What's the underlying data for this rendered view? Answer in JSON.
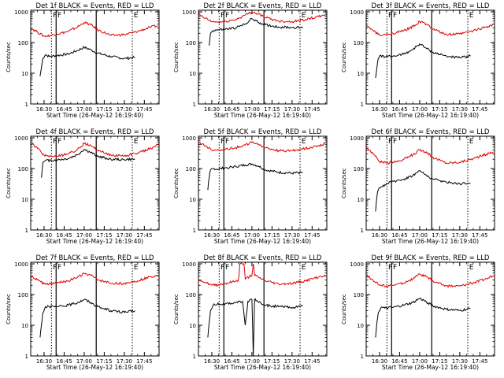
{
  "chart_data": [
    {
      "type": "line",
      "title": "Det 1f BLACK = Events, RED = LLD",
      "xlabel": "Start Time (26-May-12 16:19:40)",
      "ylabel": "Counts/sec",
      "yscale": "log",
      "ylim": [
        1,
        1000
      ],
      "xlim": [
        "16:20",
        "17:56"
      ],
      "x_ticks": [
        "16:30",
        "16:45",
        "17:00",
        "17:15",
        "17:30",
        "17:45"
      ],
      "y_ticks": [
        "1",
        "10",
        "100",
        "1000"
      ],
      "markers": [
        "F",
        "F",
        "E"
      ],
      "series": [
        {
          "name": "BLACK",
          "color": "#000000",
          "x": [
            "16:27",
            "16:28",
            "16:29",
            "16:31",
            "16:34",
            "16:40",
            "16:48",
            "16:55",
            "17:00",
            "17:05",
            "17:10",
            "17:20",
            "17:30",
            "17:38"
          ],
          "values": [
            8,
            15,
            30,
            40,
            35,
            38,
            42,
            55,
            70,
            58,
            45,
            35,
            30,
            33
          ]
        },
        {
          "name": "RED",
          "color": "#e00000",
          "x": [
            "16:20",
            "16:25",
            "16:30",
            "16:35",
            "16:40",
            "16:48",
            "16:55",
            "17:00",
            "17:05",
            "17:10",
            "17:20",
            "17:30",
            "17:40",
            "17:50",
            "17:55"
          ],
          "values": [
            300,
            220,
            160,
            170,
            190,
            230,
            320,
            450,
            380,
            260,
            170,
            180,
            230,
            320,
            350
          ]
        }
      ]
    },
    {
      "type": "line",
      "title": "Det 2f BLACK = Events, RED = LLD",
      "xlabel": "Start Time (26-May-12 16:19:40)",
      "ylabel": "Counts/sec",
      "yscale": "log",
      "ylim": [
        1,
        1000
      ],
      "xlim": [
        "16:20",
        "17:56"
      ],
      "x_ticks": [
        "16:30",
        "16:45",
        "17:00",
        "17:15",
        "17:30",
        "17:45"
      ],
      "y_ticks": [
        "1",
        "10",
        "100",
        "1000"
      ],
      "markers": [
        "F",
        "F",
        "E"
      ],
      "series": [
        {
          "name": "BLACK",
          "color": "#000000",
          "x": [
            "16:28",
            "16:29",
            "16:31",
            "16:35",
            "16:40",
            "16:48",
            "16:55",
            "17:00",
            "17:05",
            "17:10",
            "17:20",
            "17:30",
            "17:38"
          ],
          "values": [
            80,
            200,
            250,
            260,
            270,
            300,
            400,
            600,
            450,
            380,
            320,
            310,
            300
          ]
        },
        {
          "name": "RED",
          "color": "#e00000",
          "x": [
            "16:20",
            "16:25",
            "16:30",
            "16:35",
            "16:40",
            "16:48",
            "16:55",
            "17:00",
            "17:05",
            "17:10",
            "17:20",
            "17:30",
            "17:40",
            "17:50",
            "17:55"
          ],
          "values": [
            800,
            620,
            480,
            460,
            480,
            560,
            780,
            1000,
            850,
            650,
            500,
            480,
            560,
            700,
            750
          ]
        }
      ]
    },
    {
      "type": "line",
      "title": "Det 3f BLACK = Events, RED = LLD",
      "xlabel": "Start Time (26-May-12 16:19:40)",
      "ylabel": "Counts/sec",
      "yscale": "log",
      "ylim": [
        1,
        1000
      ],
      "xlim": [
        "16:20",
        "17:56"
      ],
      "x_ticks": [
        "16:30",
        "16:45",
        "17:00",
        "17:15",
        "17:30",
        "17:45"
      ],
      "y_ticks": [
        "1",
        "10",
        "100",
        "1000"
      ],
      "markers": [
        "F",
        "F",
        "E"
      ],
      "series": [
        {
          "name": "BLACK",
          "color": "#000000",
          "x": [
            "16:27",
            "16:28",
            "16:29",
            "16:31",
            "16:34",
            "16:40",
            "16:48",
            "16:55",
            "17:00",
            "17:05",
            "17:10",
            "17:20",
            "17:30",
            "17:38"
          ],
          "values": [
            7,
            15,
            30,
            38,
            34,
            36,
            42,
            60,
            90,
            65,
            48,
            36,
            32,
            36
          ]
        },
        {
          "name": "RED",
          "color": "#e00000",
          "x": [
            "16:20",
            "16:25",
            "16:30",
            "16:35",
            "16:40",
            "16:48",
            "16:55",
            "17:00",
            "17:05",
            "17:10",
            "17:20",
            "17:30",
            "17:40",
            "17:50",
            "17:55"
          ],
          "values": [
            350,
            250,
            170,
            180,
            200,
            240,
            330,
            480,
            400,
            270,
            180,
            190,
            240,
            330,
            380
          ]
        }
      ]
    },
    {
      "type": "line",
      "title": "Det 4f BLACK = Events, RED = LLD",
      "xlabel": "Start Time (26-May-12 16:19:40)",
      "ylabel": "Counts/sec",
      "yscale": "log",
      "ylim": [
        1,
        1000
      ],
      "xlim": [
        "16:20",
        "17:56"
      ],
      "x_ticks": [
        "16:30",
        "16:45",
        "17:00",
        "17:15",
        "17:30",
        "17:45"
      ],
      "y_ticks": [
        "1",
        "10",
        "100",
        "1000"
      ],
      "markers": [
        "F",
        "F",
        "E"
      ],
      "series": [
        {
          "name": "BLACK",
          "color": "#000000",
          "x": [
            "16:28",
            "16:29",
            "16:31",
            "16:35",
            "16:40",
            "16:48",
            "16:55",
            "17:00",
            "17:05",
            "17:10",
            "17:20",
            "17:30",
            "17:38"
          ],
          "values": [
            50,
            150,
            180,
            185,
            190,
            210,
            280,
            420,
            330,
            250,
            200,
            195,
            200
          ]
        },
        {
          "name": "RED",
          "color": "#e00000",
          "x": [
            "16:20",
            "16:25",
            "16:30",
            "16:35",
            "16:40",
            "16:48",
            "16:55",
            "17:00",
            "17:05",
            "17:10",
            "17:20",
            "17:30",
            "17:40",
            "17:50",
            "17:55"
          ],
          "values": [
            700,
            450,
            270,
            250,
            250,
            300,
            420,
            650,
            560,
            400,
            270,
            260,
            320,
            450,
            600
          ]
        }
      ]
    },
    {
      "type": "line",
      "title": "Det 5f BLACK = Events, RED = LLD",
      "xlabel": "Start Time (26-May-12 16:19:40)",
      "ylabel": "Counts/sec",
      "yscale": "log",
      "ylim": [
        1,
        1000
      ],
      "xlim": [
        "16:20",
        "17:56"
      ],
      "x_ticks": [
        "16:30",
        "16:45",
        "17:00",
        "17:15",
        "17:30",
        "17:45"
      ],
      "y_ticks": [
        "1",
        "10",
        "100",
        "1000"
      ],
      "markers": [
        "F",
        "F",
        "E"
      ],
      "series": [
        {
          "name": "BLACK",
          "color": "#000000",
          "x": [
            "16:27",
            "16:28",
            "16:29",
            "16:31",
            "16:34",
            "16:40",
            "16:48",
            "16:55",
            "17:00",
            "17:05",
            "17:10",
            "17:20",
            "17:30",
            "17:38"
          ],
          "values": [
            20,
            50,
            90,
            100,
            95,
            105,
            115,
            130,
            140,
            120,
            90,
            75,
            70,
            75
          ]
        },
        {
          "name": "RED",
          "color": "#e00000",
          "x": [
            "16:20",
            "16:25",
            "16:30",
            "16:35",
            "16:40",
            "16:48",
            "16:55",
            "17:00",
            "17:05",
            "17:10",
            "17:20",
            "17:30",
            "17:40",
            "17:50",
            "17:55"
          ],
          "values": [
            700,
            550,
            400,
            400,
            420,
            480,
            580,
            700,
            620,
            470,
            380,
            380,
            450,
            560,
            650
          ]
        }
      ]
    },
    {
      "type": "line",
      "title": "Det 6f BLACK = Events, RED = LLD",
      "xlabel": "Start Time (26-May-12 16:19:40)",
      "ylabel": "Counts/sec",
      "yscale": "log",
      "ylim": [
        1,
        1000
      ],
      "xlim": [
        "16:20",
        "17:56"
      ],
      "x_ticks": [
        "16:30",
        "16:45",
        "17:00",
        "17:15",
        "17:30",
        "17:45"
      ],
      "y_ticks": [
        "1",
        "10",
        "100",
        "1000"
      ],
      "markers": [
        "F",
        "F",
        "E"
      ],
      "series": [
        {
          "name": "BLACK",
          "color": "#000000",
          "x": [
            "16:27",
            "16:28",
            "16:29",
            "16:31",
            "16:34",
            "16:40",
            "16:48",
            "16:55",
            "17:00",
            "17:05",
            "17:10",
            "17:20",
            "17:30",
            "17:38"
          ],
          "values": [
            4,
            12,
            20,
            25,
            30,
            38,
            45,
            60,
            85,
            60,
            45,
            36,
            32,
            34
          ]
        },
        {
          "name": "RED",
          "color": "#e00000",
          "x": [
            "16:20",
            "16:25",
            "16:30",
            "16:35",
            "16:40",
            "16:48",
            "16:55",
            "17:00",
            "17:05",
            "17:10",
            "17:20",
            "17:30",
            "17:40",
            "17:50",
            "17:55"
          ],
          "values": [
            480,
            320,
            170,
            150,
            160,
            200,
            280,
            400,
            350,
            230,
            150,
            160,
            210,
            290,
            350
          ]
        }
      ]
    },
    {
      "type": "line",
      "title": "Det 7f BLACK = Events, RED = LLD",
      "xlabel": "Start Time (26-May-12 16:19:40)",
      "ylabel": "Counts/sec",
      "yscale": "log",
      "ylim": [
        1,
        1000
      ],
      "xlim": [
        "16:20",
        "17:56"
      ],
      "x_ticks": [
        "16:30",
        "16:45",
        "17:00",
        "17:15",
        "17:30",
        "17:45"
      ],
      "y_ticks": [
        "1",
        "10",
        "100",
        "1000"
      ],
      "markers": [
        "F",
        "F",
        "E"
      ],
      "series": [
        {
          "name": "BLACK",
          "color": "#000000",
          "x": [
            "16:27",
            "16:28",
            "16:29",
            "16:31",
            "16:34",
            "16:40",
            "16:48",
            "16:55",
            "17:00",
            "17:05",
            "17:10",
            "17:20",
            "17:30",
            "17:38"
          ],
          "values": [
            4,
            10,
            25,
            40,
            40,
            40,
            45,
            55,
            70,
            55,
            40,
            30,
            26,
            30
          ]
        },
        {
          "name": "RED",
          "color": "#e00000",
          "x": [
            "16:20",
            "16:25",
            "16:30",
            "16:35",
            "16:40",
            "16:48",
            "16:55",
            "17:00",
            "17:05",
            "17:10",
            "17:20",
            "17:30",
            "17:40",
            "17:50",
            "17:55"
          ],
          "values": [
            400,
            300,
            220,
            220,
            240,
            280,
            360,
            480,
            420,
            300,
            230,
            230,
            280,
            380,
            430
          ]
        }
      ]
    },
    {
      "type": "line",
      "title": "Det 8f BLACK = Events, RED = LLD",
      "xlabel": "Start Time (26-May-12 16:19:40)",
      "ylabel": "Counts/sec",
      "yscale": "log",
      "ylim": [
        1,
        1000
      ],
      "xlim": [
        "16:20",
        "17:56"
      ],
      "x_ticks": [
        "16:30",
        "16:45",
        "17:00",
        "17:15",
        "17:30",
        "17:45"
      ],
      "y_ticks": [
        "1",
        "10",
        "100",
        "1000"
      ],
      "markers": [
        "F",
        "F",
        "E"
      ],
      "series": [
        {
          "name": "BLACK",
          "color": "#000000",
          "x": [
            "16:27",
            "16:28",
            "16:29",
            "16:31",
            "16:34",
            "16:40",
            "16:48",
            "16:53",
            "16:55",
            "16:57",
            "17:00",
            "17:01",
            "17:02",
            "17:03",
            "17:05",
            "17:10",
            "17:20",
            "17:30",
            "17:38"
          ],
          "values": [
            4,
            12,
            30,
            45,
            48,
            50,
            55,
            60,
            10,
            60,
            70,
            1,
            70,
            62,
            55,
            45,
            40,
            38,
            42
          ]
        },
        {
          "name": "RED",
          "color": "#e00000",
          "x": [
            "16:20",
            "16:25",
            "16:30",
            "16:35",
            "16:40",
            "16:48",
            "16:50",
            "16:51",
            "16:54",
            "16:55",
            "16:58",
            "17:00",
            "17:01",
            "17:02",
            "17:05",
            "17:10",
            "17:20",
            "17:30",
            "17:40",
            "17:50",
            "17:55"
          ],
          "values": [
            320,
            250,
            200,
            210,
            230,
            270,
            300,
            1000,
            1000,
            320,
            380,
            430,
            1000,
            420,
            360,
            280,
            220,
            230,
            280,
            370,
            420
          ]
        }
      ]
    },
    {
      "type": "line",
      "title": "Det 9f BLACK = Events, RED = LLD",
      "xlabel": "Start Time (26-May-12 16:19:40)",
      "ylabel": "Counts/sec",
      "yscale": "log",
      "ylim": [
        1,
        1000
      ],
      "xlim": [
        "16:20",
        "17:56"
      ],
      "x_ticks": [
        "16:30",
        "16:45",
        "17:00",
        "17:15",
        "17:30",
        "17:45"
      ],
      "y_ticks": [
        "1",
        "10",
        "100",
        "1000"
      ],
      "markers": [
        "F",
        "F",
        "E"
      ],
      "series": [
        {
          "name": "BLACK",
          "color": "#000000",
          "x": [
            "16:27",
            "16:28",
            "16:29",
            "16:31",
            "16:34",
            "16:40",
            "16:48",
            "16:55",
            "17:00",
            "17:05",
            "17:10",
            "17:20",
            "17:30",
            "17:38"
          ],
          "values": [
            4,
            12,
            25,
            38,
            36,
            38,
            45,
            55,
            75,
            58,
            42,
            33,
            30,
            35
          ]
        },
        {
          "name": "RED",
          "color": "#e00000",
          "x": [
            "16:20",
            "16:25",
            "16:30",
            "16:35",
            "16:40",
            "16:48",
            "16:55",
            "17:00",
            "17:05",
            "17:10",
            "17:20",
            "17:30",
            "17:40",
            "17:50",
            "17:55"
          ],
          "values": [
            420,
            300,
            200,
            190,
            200,
            240,
            320,
            460,
            380,
            270,
            190,
            190,
            240,
            330,
            400
          ]
        }
      ]
    }
  ]
}
